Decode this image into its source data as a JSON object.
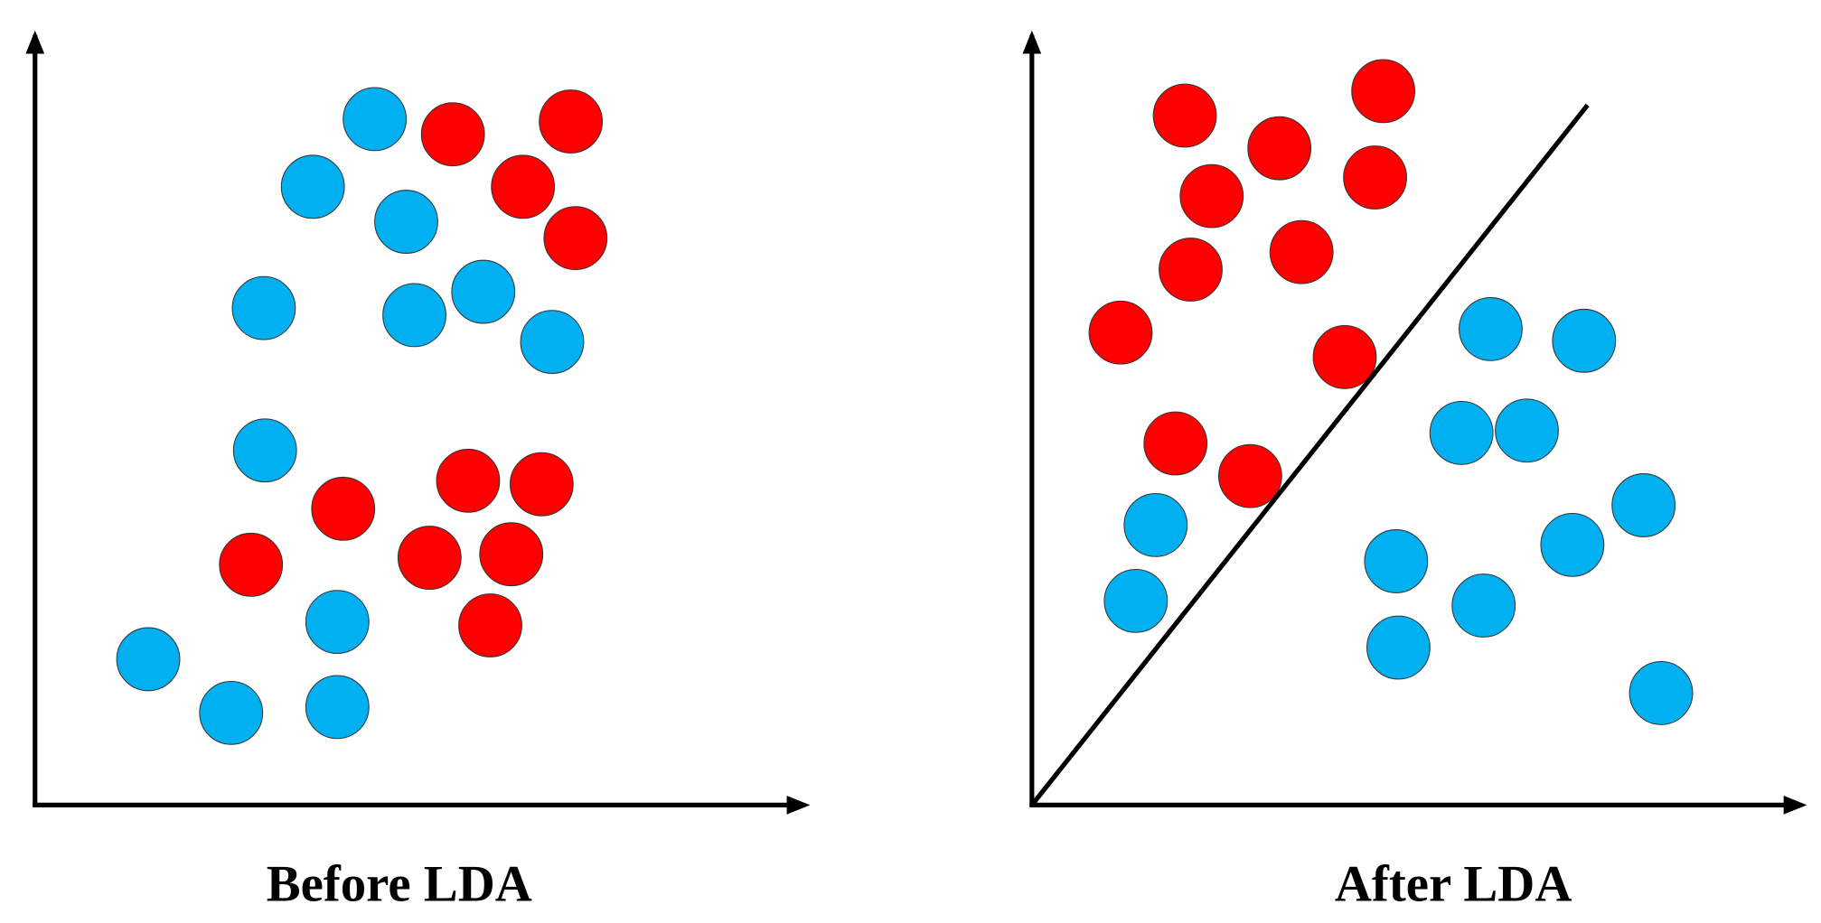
{
  "panels": [
    {
      "caption": "Before LDA"
    },
    {
      "caption": "After LDA"
    }
  ]
}
